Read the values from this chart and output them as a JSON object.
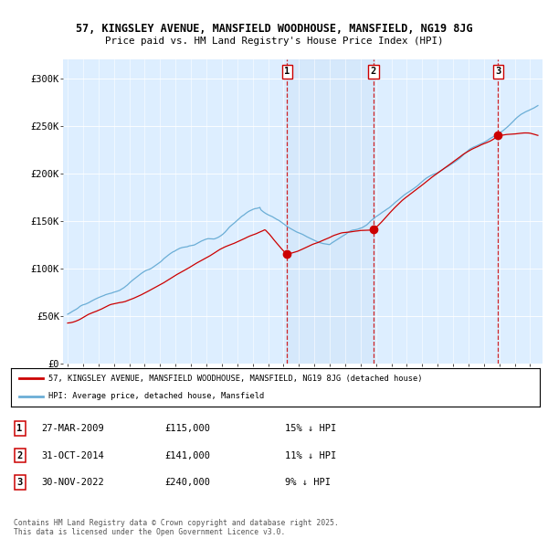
{
  "title_line1": "57, KINGSLEY AVENUE, MANSFIELD WOODHOUSE, MANSFIELD, NG19 8JG",
  "title_line2": "Price paid vs. HM Land Registry's House Price Index (HPI)",
  "ylim": [
    0,
    320000
  ],
  "yticks": [
    0,
    50000,
    100000,
    150000,
    200000,
    250000,
    300000
  ],
  "ytick_labels": [
    "£0",
    "£50K",
    "£100K",
    "£150K",
    "£200K",
    "£250K",
    "£300K"
  ],
  "xlim_start": 1994.7,
  "xlim_end": 2025.8,
  "sale_dates": [
    2009.23,
    2014.83,
    2022.92
  ],
  "sale_prices": [
    115000,
    141000,
    240000
  ],
  "sale_labels": [
    "1",
    "2",
    "3"
  ],
  "legend_entry1": "57, KINGSLEY AVENUE, MANSFIELD WOODHOUSE, MANSFIELD, NG19 8JG (detached house)",
  "legend_entry2": "HPI: Average price, detached house, Mansfield",
  "table_entries": [
    {
      "num": "1",
      "date": "27-MAR-2009",
      "price": "£115,000",
      "pct": "15% ↓ HPI"
    },
    {
      "num": "2",
      "date": "31-OCT-2014",
      "price": "£141,000",
      "pct": "11% ↓ HPI"
    },
    {
      "num": "3",
      "date": "30-NOV-2022",
      "price": "£240,000",
      "pct": "9% ↓ HPI"
    }
  ],
  "footnote": "Contains HM Land Registry data © Crown copyright and database right 2025.\nThis data is licensed under the Open Government Licence v3.0.",
  "hpi_color": "#6baed6",
  "sale_color": "#cc0000",
  "vline_color": "#cc0000",
  "background_plot": "#ddeeff",
  "shade_color": "#c8dff5",
  "background_fig": "#ffffff"
}
